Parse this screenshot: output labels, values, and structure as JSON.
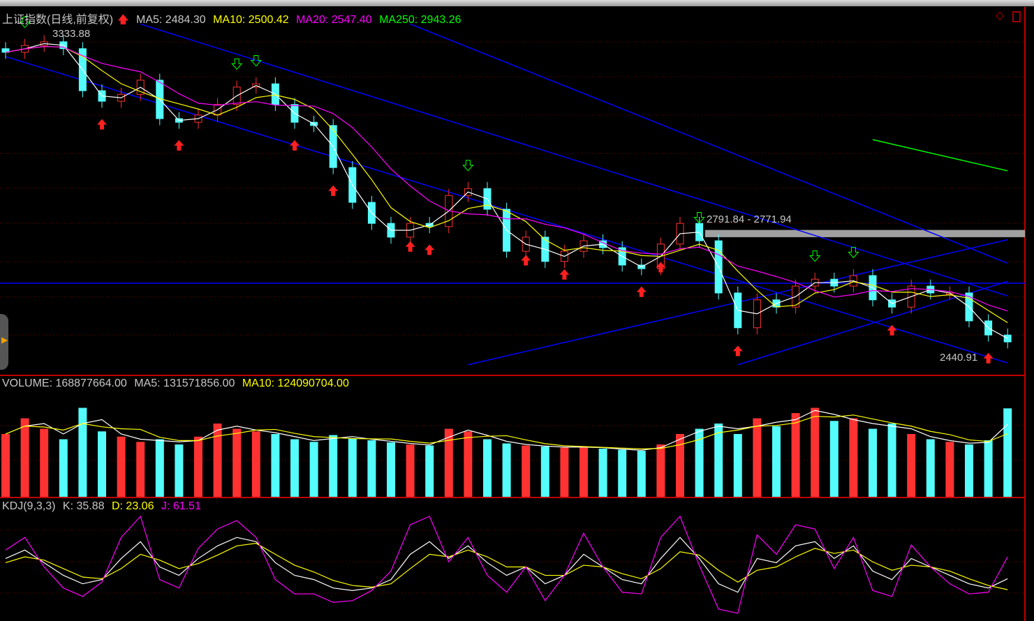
{
  "title": "上证指数(日线,前复权)",
  "legend_main": {
    "ma5": "MA5: 2484.30",
    "ma10": "MA10: 2500.42",
    "ma20": "MA20: 2547.40",
    "ma250": "MA250: 2943.26"
  },
  "legend_volume": {
    "volume": "VOLUME: 168877664.00",
    "ma5": "MA5: 131571856.00",
    "ma10": "MA10: 124090704.00"
  },
  "legend_kdj": {
    "name": "KDJ(9,3,3)",
    "k": "K: 35.88",
    "d": "D: 23.06",
    "j": "J: 61.51"
  },
  "annotations": {
    "high": "3333.88",
    "low": "2440.91",
    "band": "2791.84 - 2771.94"
  },
  "colors": {
    "up": "#ff3232",
    "down": "#54fcfc",
    "ma5": "#ffffff",
    "ma10": "#ffff00",
    "ma20": "#ff00ff",
    "ma250": "#00ff00",
    "trendline": "#0000ff",
    "panel_border": "#c00000"
  },
  "chart_data": {
    "type": "candlestick",
    "price_range": [
      2420,
      3360
    ],
    "closes": [
      3282,
      3301,
      3311,
      3292,
      3176,
      3147,
      3166,
      3205,
      3099,
      3089,
      3109,
      3138,
      3186,
      3195,
      3138,
      3089,
      3080,
      2964,
      2868,
      2810,
      2772,
      2810,
      2801,
      2887,
      2906,
      2849,
      2733,
      2772,
      2705,
      2733,
      2762,
      2743,
      2695,
      2685,
      2753,
      2810,
      2762,
      2618,
      2522,
      2599,
      2579,
      2637,
      2656,
      2637,
      2666,
      2599,
      2579,
      2637,
      2618,
      2618,
      2541,
      2502,
      2483
    ],
    "volume_millions": [
      120,
      150,
      130,
      110,
      170,
      125,
      115,
      105,
      110,
      100,
      115,
      140,
      130,
      125,
      120,
      110,
      105,
      118,
      112,
      108,
      104,
      100,
      98,
      130,
      125,
      110,
      102,
      98,
      96,
      94,
      96,
      92,
      90,
      88,
      100,
      120,
      130,
      140,
      120,
      150,
      135,
      160,
      170,
      145,
      150,
      130,
      140,
      120,
      110,
      105,
      100,
      108,
      169
    ],
    "volume_range": [
      0,
      200
    ],
    "kdj": {
      "K": [
        60,
        70,
        55,
        40,
        30,
        35,
        60,
        80,
        50,
        40,
        60,
        75,
        85,
        80,
        55,
        40,
        35,
        25,
        22,
        25,
        35,
        65,
        80,
        60,
        75,
        55,
        40,
        50,
        30,
        40,
        65,
        50,
        35,
        30,
        60,
        85,
        60,
        30,
        20,
        60,
        55,
        75,
        80,
        60,
        75,
        45,
        35,
        60,
        50,
        40,
        30,
        25,
        36
      ],
      "D": [
        55,
        62,
        58,
        48,
        38,
        36,
        48,
        65,
        58,
        48,
        54,
        64,
        75,
        78,
        65,
        52,
        44,
        34,
        28,
        26,
        30,
        48,
        65,
        62,
        70,
        62,
        50,
        50,
        40,
        40,
        52,
        50,
        42,
        36,
        48,
        68,
        64,
        46,
        32,
        46,
        50,
        62,
        72,
        66,
        70,
        56,
        46,
        52,
        50,
        45,
        36,
        28,
        23
      ],
      "J": [
        70,
        85,
        50,
        25,
        15,
        32,
        85,
        110,
        35,
        25,
        72,
        95,
        105,
        85,
        35,
        18,
        18,
        8,
        10,
        22,
        45,
        100,
        110,
        56,
        85,
        40,
        20,
        50,
        10,
        40,
        90,
        50,
        20,
        18,
        85,
        110,
        52,
        0,
        -5,
        88,
        65,
        100,
        95,
        48,
        85,
        22,
        15,
        76,
        50,
        30,
        18,
        20,
        62
      ],
      "range": [
        -10,
        110
      ]
    },
    "signals_up": [
      5,
      9,
      15,
      17,
      21,
      22,
      27,
      29,
      33,
      34,
      38,
      46,
      51
    ],
    "signals_down": [
      1,
      12,
      13,
      24,
      36,
      42,
      44
    ],
    "trendlines": [
      {
        "from": [
          0,
          3270
        ],
        "to": [
          52,
          2425
        ]
      },
      {
        "from": [
          7,
          3360
        ],
        "to": [
          52,
          2610
        ]
      },
      {
        "from": [
          21,
          3360
        ],
        "to": [
          52,
          2700
        ]
      },
      {
        "from": [
          24,
          2420
        ],
        "to": [
          52,
          2765
        ]
      },
      {
        "from": [
          38,
          2420
        ],
        "to": [
          52,
          2650
        ]
      }
    ],
    "horizontal_line": 2645,
    "band": [
      2771.94,
      2791.84
    ],
    "ma250_segment": {
      "from": [
        45,
        3041
      ],
      "to": [
        52,
        2955
      ]
    }
  }
}
